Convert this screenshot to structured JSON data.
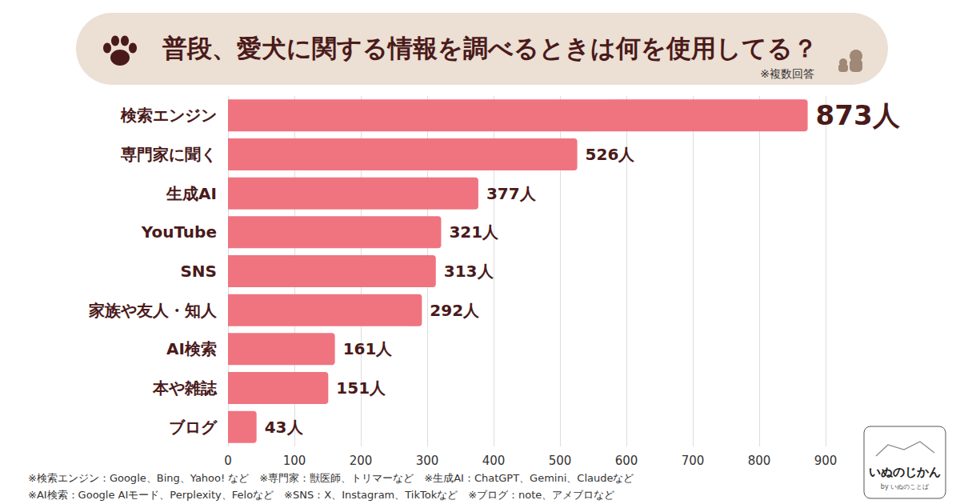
{
  "chart_data": {
    "type": "bar",
    "title": "普段、愛犬に関する情報を調べるときは何を使用してる？",
    "subtitle": "※複数回答",
    "orientation": "horizontal",
    "categories": [
      "検索エンジン",
      "専門家に聞く",
      "生成AI",
      "YouTube",
      "SNS",
      "家族や友人・知人",
      "AI検索",
      "本や雑誌",
      "ブログ"
    ],
    "values": [
      873,
      526,
      377,
      321,
      313,
      292,
      161,
      151,
      43
    ],
    "value_labels": [
      "873人",
      "526人",
      "377人",
      "321人",
      "313人",
      "292人",
      "161人",
      "151人",
      "43人"
    ],
    "data_labels": true,
    "color": "#ef7480",
    "xlim": [
      0,
      900
    ],
    "xticks": [
      0,
      100,
      200,
      300,
      400,
      500,
      600,
      700,
      800,
      900
    ],
    "grid": true,
    "annotations": [
      "※検索エンジン：Google、Bing、Yahoo! など　※専門家：獣医師、トリマーなど　※生成AI：ChatGPT、Gemini、Claudeなど",
      "※AI検索：Google AIモード、Perplexity、Feloなど　※SNS：X、Instagram、TikTokなど　※ブログ：note、アメブロなど"
    ],
    "logo": [
      "いぬのじかん",
      "by いぬのことば"
    ]
  }
}
